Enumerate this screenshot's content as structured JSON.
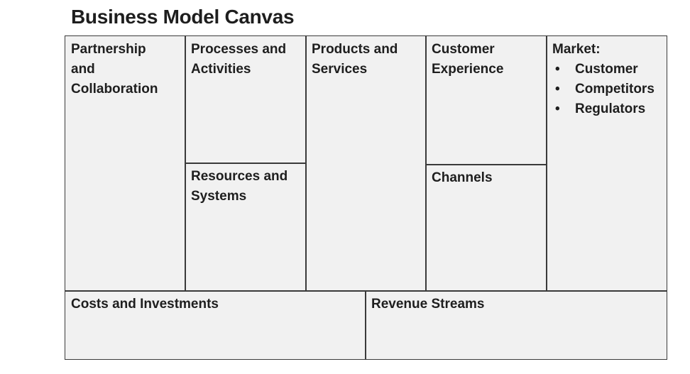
{
  "title": "Business Model Canvas",
  "blocks": {
    "partnership": {
      "lines": [
        "Partnership",
        "and",
        "Collaboration"
      ]
    },
    "processes": {
      "lines": [
        "Processes and",
        "Activities"
      ]
    },
    "resources": {
      "lines": [
        "Resources and",
        "Systems"
      ]
    },
    "products": {
      "lines": [
        "Products and",
        "Services"
      ]
    },
    "customer_experience": {
      "lines": [
        "Customer",
        "Experience"
      ]
    },
    "channels": {
      "lines": [
        "Channels"
      ]
    },
    "market": {
      "heading": "Market:",
      "items": [
        "Customer",
        "Competitors",
        "Regulators"
      ]
    },
    "costs": {
      "lines": [
        "Costs and Investments"
      ]
    },
    "revenue": {
      "lines": [
        "Revenue Streams"
      ]
    }
  }
}
